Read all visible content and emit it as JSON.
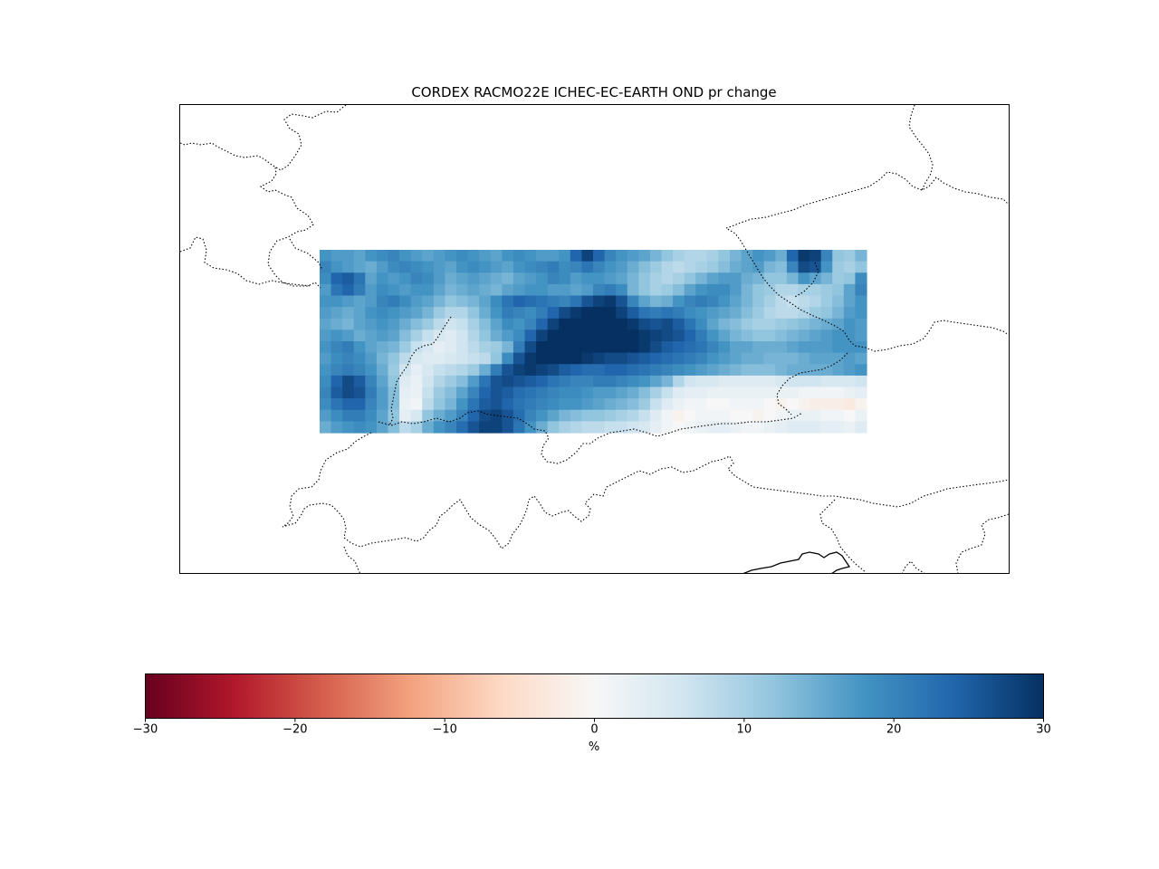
{
  "title": "CORDEX RACMO22E ICHEC-EC-EARTH OND pr change",
  "colorbar": {
    "label": "%",
    "colormap": "RdBu",
    "vmin": -30,
    "vmax": 30,
    "ticks": [
      -30,
      -20,
      -10,
      0,
      10,
      20,
      30
    ],
    "tick_labels": [
      "−30",
      "−20",
      "−10",
      "0",
      "10",
      "20",
      "30"
    ],
    "colors": [
      "#67001f",
      "#b2182b",
      "#d6604d",
      "#f4a582",
      "#fddbc7",
      "#f7f7f7",
      "#d1e5f0",
      "#92c5de",
      "#4393c3",
      "#2166ac",
      "#053061"
    ]
  },
  "chart_data": {
    "type": "heatmap",
    "title": "CORDEX RACMO22E ICHEC-EC-EARTH OND pr change",
    "unit": "%",
    "range": [
      -30,
      30
    ],
    "value_min_approx": -3,
    "value_max_approx": 30,
    "grid": {
      "rows": 16,
      "cols": 48
    },
    "values": [
      [
        18,
        17,
        17,
        16,
        18,
        19,
        20,
        18,
        17,
        16,
        17,
        18,
        19,
        18,
        17,
        16,
        18,
        19,
        18,
        17,
        17,
        18,
        24,
        28,
        24,
        20,
        18,
        17,
        16,
        14,
        12,
        10,
        9,
        9,
        10,
        12,
        14,
        16,
        18,
        17,
        15,
        24,
        29,
        28,
        20,
        12,
        11,
        14
      ],
      [
        20,
        18,
        17,
        16,
        15,
        17,
        19,
        20,
        19,
        18,
        17,
        16,
        18,
        19,
        18,
        17,
        16,
        18,
        19,
        20,
        21,
        19,
        20,
        22,
        20,
        18,
        17,
        15,
        13,
        11,
        9,
        8,
        9,
        10,
        11,
        13,
        15,
        16,
        17,
        14,
        13,
        20,
        27,
        26,
        18,
        11,
        10,
        12
      ],
      [
        19,
        24,
        25,
        22,
        16,
        18,
        17,
        18,
        20,
        19,
        17,
        15,
        16,
        17,
        16,
        15,
        14,
        16,
        17,
        18,
        20,
        19,
        17,
        18,
        18,
        17,
        16,
        14,
        12,
        10,
        9,
        10,
        12,
        14,
        16,
        17,
        17,
        15,
        14,
        12,
        12,
        14,
        18,
        16,
        14,
        11,
        12,
        19
      ],
      [
        17,
        22,
        24,
        21,
        17,
        19,
        18,
        17,
        18,
        18,
        16,
        14,
        15,
        16,
        15,
        14,
        16,
        17,
        18,
        18,
        17,
        17,
        16,
        17,
        20,
        21,
        19,
        14,
        12,
        10,
        11,
        13,
        16,
        18,
        19,
        19,
        17,
        14,
        12,
        11,
        9,
        9,
        10,
        10,
        11,
        12,
        16,
        20
      ],
      [
        18,
        18,
        17,
        16,
        17,
        20,
        21,
        19,
        17,
        16,
        14,
        12,
        13,
        14,
        16,
        19,
        22,
        24,
        23,
        22,
        21,
        20,
        22,
        26,
        28,
        29,
        26,
        20,
        16,
        14,
        15,
        18,
        20,
        21,
        20,
        18,
        16,
        14,
        12,
        10,
        8,
        7,
        8,
        9,
        11,
        13,
        16,
        18
      ],
      [
        17,
        16,
        15,
        16,
        18,
        19,
        18,
        17,
        16,
        14,
        11,
        9,
        9,
        12,
        15,
        18,
        21,
        20,
        19,
        21,
        24,
        27,
        29,
        30,
        30,
        30,
        28,
        25,
        22,
        21,
        22,
        21,
        19,
        18,
        17,
        16,
        15,
        13,
        11,
        9,
        8,
        8,
        9,
        11,
        12,
        14,
        17,
        18
      ],
      [
        16,
        15,
        14,
        16,
        17,
        18,
        17,
        15,
        13,
        11,
        8,
        6,
        7,
        10,
        13,
        16,
        19,
        18,
        20,
        24,
        28,
        30,
        30,
        30,
        30,
        30,
        30,
        29,
        27,
        26,
        27,
        25,
        22,
        19,
        16,
        14,
        13,
        11,
        10,
        10,
        11,
        12,
        13,
        14,
        15,
        16,
        18,
        17
      ],
      [
        17,
        18,
        17,
        15,
        16,
        17,
        16,
        13,
        10,
        7,
        5,
        4,
        6,
        9,
        12,
        15,
        17,
        19,
        24,
        28,
        30,
        30,
        30,
        30,
        30,
        30,
        30,
        30,
        29,
        28,
        27,
        26,
        24,
        21,
        18,
        16,
        14,
        13,
        12,
        12,
        13,
        14,
        15,
        16,
        17,
        18,
        18,
        17
      ],
      [
        18,
        20,
        21,
        18,
        16,
        15,
        14,
        11,
        7,
        5,
        3,
        4,
        6,
        8,
        10,
        11,
        14,
        21,
        27,
        30,
        30,
        30,
        30,
        30,
        30,
        30,
        30,
        30,
        29,
        27,
        25,
        24,
        23,
        22,
        20,
        18,
        16,
        16,
        15,
        15,
        15,
        16,
        17,
        17,
        17,
        18,
        18,
        18
      ],
      [
        17,
        19,
        20,
        19,
        17,
        14,
        12,
        8,
        5,
        4,
        4,
        5,
        6,
        7,
        8,
        12,
        19,
        26,
        29,
        30,
        30,
        30,
        30,
        29,
        28,
        27,
        27,
        26,
        25,
        24,
        23,
        22,
        21,
        20,
        18,
        17,
        16,
        15,
        15,
        14,
        14,
        14,
        15,
        16,
        16,
        16,
        17,
        16
      ],
      [
        18,
        20,
        21,
        20,
        18,
        15,
        11,
        6,
        3,
        5,
        7,
        8,
        9,
        11,
        15,
        21,
        26,
        28,
        29,
        28,
        27,
        25,
        24,
        23,
        23,
        24,
        24,
        23,
        22,
        21,
        20,
        19,
        18,
        17,
        16,
        15,
        14,
        13,
        13,
        13,
        14,
        15,
        15,
        15,
        15,
        16,
        17,
        18
      ],
      [
        19,
        24,
        27,
        25,
        20,
        16,
        12,
        4,
        2,
        6,
        9,
        11,
        13,
        17,
        22,
        26,
        27,
        26,
        25,
        24,
        22,
        21,
        20,
        20,
        21,
        21,
        20,
        19,
        18,
        16,
        14,
        9,
        6,
        5,
        5,
        4,
        4,
        4,
        4,
        4,
        5,
        6,
        6,
        6,
        5,
        5,
        5,
        6
      ],
      [
        20,
        25,
        27,
        26,
        21,
        17,
        13,
        3,
        2,
        7,
        11,
        13,
        16,
        20,
        24,
        26,
        25,
        23,
        22,
        21,
        20,
        19,
        19,
        18,
        17,
        17,
        16,
        15,
        13,
        10,
        7,
        4,
        3,
        3,
        2,
        2,
        2,
        2,
        2,
        2,
        2,
        2,
        1,
        1,
        1,
        1,
        2,
        3
      ],
      [
        19,
        22,
        24,
        24,
        20,
        17,
        13,
        2,
        1,
        8,
        12,
        14,
        18,
        22,
        25,
        26,
        24,
        22,
        21,
        20,
        19,
        18,
        18,
        17,
        16,
        15,
        14,
        13,
        11,
        7,
        4,
        2,
        1,
        1,
        0,
        0,
        1,
        1,
        1,
        0,
        -1,
        0,
        -1,
        -2,
        -2,
        -2,
        -3,
        -1
      ],
      [
        17,
        19,
        21,
        21,
        19,
        16,
        12,
        3,
        5,
        12,
        15,
        17,
        20,
        24,
        27,
        28,
        26,
        23,
        20,
        18,
        16,
        14,
        13,
        12,
        12,
        11,
        10,
        9,
        7,
        4,
        1,
        -1,
        0,
        1,
        1,
        1,
        0,
        0,
        -1,
        0,
        1,
        2,
        2,
        2,
        1,
        1,
        0,
        2
      ],
      [
        15,
        17,
        18,
        19,
        18,
        16,
        13,
        8,
        10,
        15,
        18,
        20,
        23,
        26,
        28,
        28,
        26,
        22,
        18,
        15,
        12,
        10,
        9,
        8,
        8,
        7,
        7,
        6,
        5,
        3,
        1,
        0,
        1,
        2,
        3,
        3,
        2,
        1,
        1,
        2,
        3,
        4,
        4,
        4,
        3,
        3,
        2,
        4
      ]
    ]
  }
}
